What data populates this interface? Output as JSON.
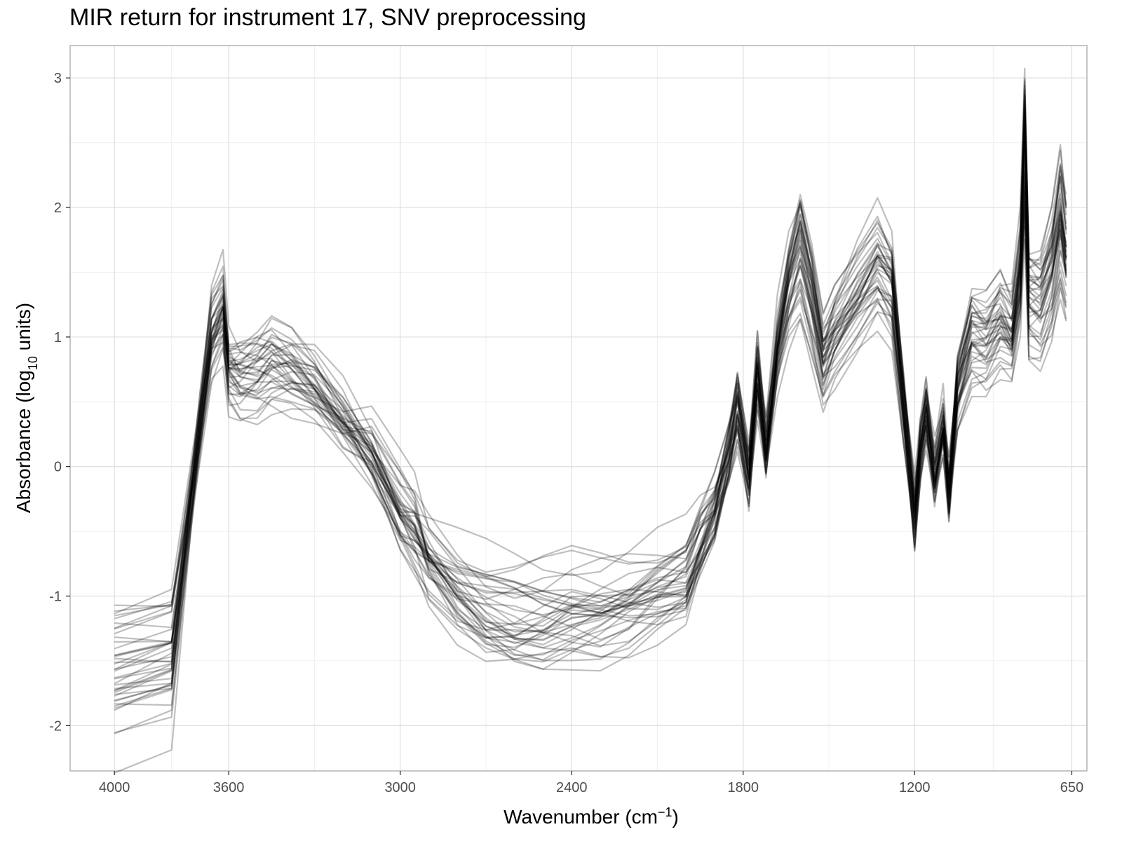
{
  "chart_data": {
    "type": "line",
    "title": "MIR return for instrument 17, SNV preprocessing",
    "xlabel": {
      "text": "Wavenumber (cm",
      "sup": "−1",
      "close": ")"
    },
    "ylabel": {
      "text": "Absorbance (log",
      "sub": "10",
      "close": " units)"
    },
    "xlim": [
      4155,
      597
    ],
    "ylim": [
      -2.35,
      3.25
    ],
    "x_reversed": true,
    "grid": true,
    "x_ticks": [
      4000,
      3600,
      3000,
      2400,
      1800,
      1200,
      650
    ],
    "x_tick_labels": [
      "4000",
      "3600",
      "3000",
      "2400",
      "1800",
      "1200",
      "650"
    ],
    "y_ticks": [
      -2,
      -1,
      0,
      1,
      2,
      3
    ],
    "y_tick_labels": [
      "-2",
      "-1",
      "0",
      "1",
      "2",
      "3"
    ],
    "line_color": "#000000",
    "line_opacity": 0.25,
    "series_count": 40,
    "x": [
      4000,
      3800,
      3700,
      3660,
      3620,
      3600,
      3560,
      3500,
      3450,
      3380,
      3300,
      3200,
      3100,
      3000,
      2950,
      2900,
      2800,
      2700,
      2600,
      2500,
      2400,
      2300,
      2200,
      2100,
      2000,
      1950,
      1900,
      1850,
      1820,
      1780,
      1750,
      1720,
      1680,
      1640,
      1600,
      1560,
      1520,
      1480,
      1400,
      1330,
      1280,
      1240,
      1200,
      1180,
      1160,
      1130,
      1100,
      1080,
      1050,
      1000,
      950,
      900,
      860,
      830,
      815,
      800,
      760,
      720,
      690,
      670
    ],
    "mean_series": [
      -1.6,
      -1.5,
      0.3,
      1.0,
      1.2,
      0.75,
      0.7,
      0.72,
      0.78,
      0.72,
      0.6,
      0.35,
      0.05,
      -0.4,
      -0.55,
      -0.75,
      -1.0,
      -1.15,
      -1.2,
      -1.2,
      -1.15,
      -1.15,
      -1.1,
      -1.0,
      -0.9,
      -0.6,
      -0.35,
      0.1,
      0.45,
      -0.1,
      0.7,
      0.1,
      0.9,
      1.4,
      1.7,
      1.3,
      0.8,
      1.0,
      1.3,
      1.55,
      1.4,
      0.5,
      -0.4,
      0.1,
      0.4,
      -0.1,
      0.3,
      -0.2,
      0.6,
      1.0,
      0.95,
      1.1,
      1.0,
      1.5,
      2.5,
      1.3,
      1.25,
      1.5,
      1.9,
      1.6
    ]
  }
}
